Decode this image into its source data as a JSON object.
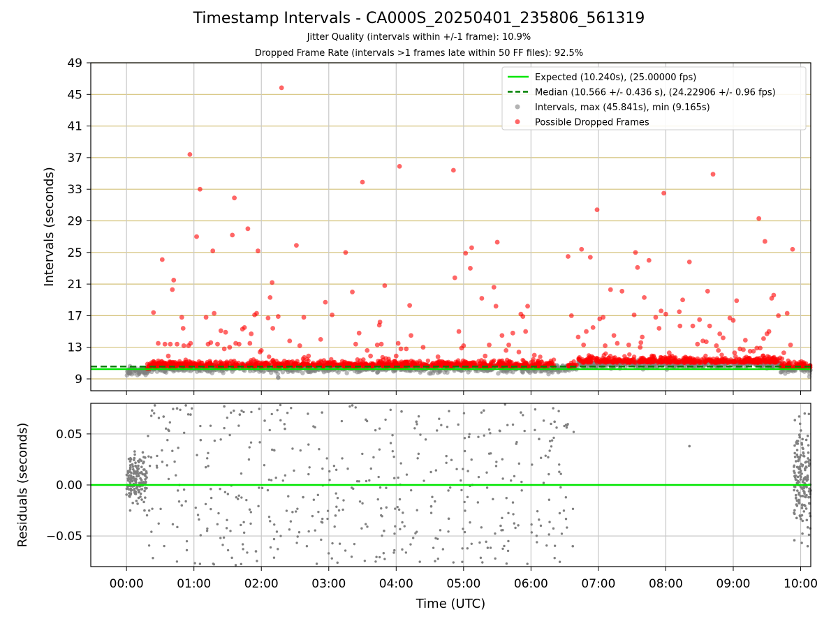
{
  "figure": {
    "title": "Timestamp Intervals - CA000S_20250401_235806_561319",
    "subtitle_jitter": "Jitter Quality (intervals within +/-1 frame): 10.9%",
    "subtitle_dropped": "Dropped Frame Rate (intervals >1 frames late within 50 FF files): 92.5%"
  },
  "colors": {
    "expected": "#00e600",
    "median": "#008000",
    "intervals": "#808080",
    "dropped": "#ff0000",
    "hgrid": "#d4c27a",
    "vgrid": "#c8c8c8"
  },
  "chart_data": [
    {
      "type": "scatter",
      "ylabel": "Intervals (seconds)",
      "ylim": [
        7.5,
        49
      ],
      "yticks": [
        9,
        13,
        17,
        21,
        25,
        29,
        33,
        37,
        41,
        45,
        49
      ],
      "xlim_hours": [
        -0.53,
        10.15
      ],
      "xticks": [
        "00:00",
        "01:00",
        "02:00",
        "03:00",
        "04:00",
        "05:00",
        "06:00",
        "07:00",
        "08:00",
        "09:00",
        "10:00"
      ],
      "grid": true,
      "legend_position": "upper right",
      "legend": [
        "Expected (10.240s), (25.00000 fps)",
        "Median (10.566 +/- 0.436 s), (24.22906 +/- 0.96 fps)",
        "Intervals, max (45.841s), min (9.165s)",
        "Possible Dropped Frames"
      ],
      "expected_interval": 10.24,
      "median_interval": 10.566,
      "max_interval": 45.841,
      "min_interval": 9.165,
      "dropped_outliers": [
        [
          0.4,
          17.4
        ],
        [
          0.47,
          13.5
        ],
        [
          0.53,
          24.1
        ],
        [
          0.57,
          13.4
        ],
        [
          0.62,
          11.9
        ],
        [
          0.65,
          13.4
        ],
        [
          0.68,
          20.3
        ],
        [
          0.7,
          21.5
        ],
        [
          0.75,
          13.4
        ],
        [
          0.82,
          16.8
        ],
        [
          0.84,
          15.4
        ],
        [
          0.85,
          13.2
        ],
        [
          0.92,
          13.2
        ],
        [
          0.94,
          37.4
        ],
        [
          0.95,
          13.5
        ],
        [
          1.04,
          27.0
        ],
        [
          1.09,
          33.0
        ],
        [
          1.18,
          16.8
        ],
        [
          1.21,
          13.4
        ],
        [
          1.25,
          13.6
        ],
        [
          1.28,
          25.2
        ],
        [
          1.3,
          17.3
        ],
        [
          1.35,
          13.4
        ],
        [
          1.4,
          15.1
        ],
        [
          1.45,
          12.8
        ],
        [
          1.47,
          14.9
        ],
        [
          1.53,
          13.0
        ],
        [
          1.57,
          27.2
        ],
        [
          1.6,
          31.9
        ],
        [
          1.62,
          13.5
        ],
        [
          1.67,
          13.4
        ],
        [
          1.72,
          15.3
        ],
        [
          1.75,
          15.5
        ],
        [
          1.8,
          28.0
        ],
        [
          1.83,
          13.5
        ],
        [
          1.85,
          14.7
        ],
        [
          1.9,
          17.1
        ],
        [
          1.93,
          17.3
        ],
        [
          1.95,
          25.2
        ],
        [
          1.98,
          12.4
        ],
        [
          2.0,
          12.6
        ],
        [
          2.1,
          16.7
        ],
        [
          2.13,
          19.3
        ],
        [
          2.16,
          21.2
        ],
        [
          2.17,
          15.4
        ],
        [
          2.25,
          16.9
        ],
        [
          2.3,
          45.84
        ],
        [
          2.42,
          13.8
        ],
        [
          2.52,
          25.9
        ],
        [
          2.57,
          13.2
        ],
        [
          2.63,
          16.8
        ],
        [
          2.7,
          11.9
        ],
        [
          2.88,
          14.0
        ],
        [
          2.95,
          18.7
        ],
        [
          3.05,
          17.1
        ],
        [
          3.25,
          25.0
        ],
        [
          3.35,
          20.0
        ],
        [
          3.4,
          13.4
        ],
        [
          3.45,
          14.8
        ],
        [
          3.5,
          33.9
        ],
        [
          3.57,
          12.6
        ],
        [
          3.62,
          11.9
        ],
        [
          3.72,
          13.3
        ],
        [
          3.75,
          15.8
        ],
        [
          3.76,
          16.2
        ],
        [
          3.78,
          13.4
        ],
        [
          3.83,
          20.8
        ],
        [
          4.0,
          11.9
        ],
        [
          4.03,
          13.5
        ],
        [
          4.05,
          35.9
        ],
        [
          4.07,
          12.8
        ],
        [
          4.15,
          12.8
        ],
        [
          4.2,
          18.3
        ],
        [
          4.22,
          14.5
        ],
        [
          4.4,
          13.0
        ],
        [
          4.62,
          11.8
        ],
        [
          4.85,
          35.4
        ],
        [
          4.87,
          21.8
        ],
        [
          4.93,
          15.0
        ],
        [
          4.97,
          12.9
        ],
        [
          5.0,
          13.2
        ],
        [
          5.03,
          24.9
        ],
        [
          5.1,
          23.0
        ],
        [
          5.12,
          25.6
        ],
        [
          5.27,
          19.2
        ],
        [
          5.32,
          11.9
        ],
        [
          5.38,
          13.3
        ],
        [
          5.45,
          20.6
        ],
        [
          5.48,
          18.2
        ],
        [
          5.5,
          26.3
        ],
        [
          5.57,
          14.5
        ],
        [
          5.63,
          12.6
        ],
        [
          5.67,
          13.3
        ],
        [
          5.73,
          14.8
        ],
        [
          5.82,
          12.4
        ],
        [
          5.85,
          17.2
        ],
        [
          5.88,
          16.9
        ],
        [
          5.92,
          15.0
        ],
        [
          5.95,
          18.2
        ],
        [
          6.05,
          12.0
        ],
        [
          6.55,
          24.5
        ],
        [
          6.6,
          17.0
        ],
        [
          6.7,
          14.3
        ],
        [
          6.75,
          25.4
        ],
        [
          6.78,
          13.3
        ],
        [
          6.82,
          15.0
        ],
        [
          6.88,
          24.4
        ],
        [
          6.92,
          15.5
        ],
        [
          6.98,
          30.4
        ],
        [
          7.02,
          16.6
        ],
        [
          7.07,
          16.8
        ],
        [
          7.1,
          13.2
        ],
        [
          7.18,
          20.3
        ],
        [
          7.23,
          14.5
        ],
        [
          7.28,
          13.5
        ],
        [
          7.35,
          20.1
        ],
        [
          7.45,
          13.3
        ],
        [
          7.53,
          17.1
        ],
        [
          7.55,
          25.0
        ],
        [
          7.58,
          23.1
        ],
        [
          7.62,
          13.0
        ],
        [
          7.63,
          13.6
        ],
        [
          7.65,
          14.3
        ],
        [
          7.68,
          19.3
        ],
        [
          7.75,
          24.0
        ],
        [
          7.85,
          16.8
        ],
        [
          7.9,
          15.4
        ],
        [
          7.93,
          17.6
        ],
        [
          7.97,
          32.5
        ],
        [
          8.0,
          17.2
        ],
        [
          8.05,
          12.3
        ],
        [
          8.2,
          17.5
        ],
        [
          8.21,
          15.7
        ],
        [
          8.25,
          19.0
        ],
        [
          8.35,
          23.8
        ],
        [
          8.4,
          15.7
        ],
        [
          8.47,
          13.4
        ],
        [
          8.5,
          16.5
        ],
        [
          8.55,
          13.8
        ],
        [
          8.6,
          13.7
        ],
        [
          8.62,
          20.1
        ],
        [
          8.65,
          15.7
        ],
        [
          8.7,
          34.9
        ],
        [
          8.75,
          13.2
        ],
        [
          8.78,
          12.6
        ],
        [
          8.8,
          14.7
        ],
        [
          8.85,
          14.2
        ],
        [
          8.95,
          16.7
        ],
        [
          9.0,
          16.4
        ],
        [
          9.02,
          12.3
        ],
        [
          9.05,
          18.9
        ],
        [
          9.1,
          12.8
        ],
        [
          9.15,
          12.7
        ],
        [
          9.18,
          13.9
        ],
        [
          9.25,
          12.5
        ],
        [
          9.3,
          12.5
        ],
        [
          9.35,
          12.9
        ],
        [
          9.38,
          29.3
        ],
        [
          9.4,
          12.9
        ],
        [
          9.45,
          14.1
        ],
        [
          9.47,
          26.4
        ],
        [
          9.5,
          14.7
        ],
        [
          9.53,
          15.0
        ],
        [
          9.57,
          19.2
        ],
        [
          9.6,
          19.6
        ],
        [
          9.67,
          17.0
        ],
        [
          9.75,
          12.3
        ],
        [
          9.8,
          17.3
        ],
        [
          9.85,
          13.3
        ],
        [
          9.88,
          25.4
        ]
      ]
    },
    {
      "type": "scatter",
      "ylabel": "Residuals (seconds)",
      "xlabel": "Time (UTC)",
      "ylim": [
        -0.08,
        0.08
      ],
      "yticks": [
        0.05,
        0.0,
        -0.05
      ],
      "ytick_labels": [
        "0.05",
        "0.00",
        "−0.05"
      ],
      "xlim_hours": [
        -0.53,
        10.15
      ],
      "xticks": [
        "00:00",
        "01:00",
        "02:00",
        "03:00",
        "04:00",
        "05:00",
        "06:00",
        "07:00",
        "08:00",
        "09:00",
        "10:00"
      ],
      "grid": true,
      "zero_line": 0.0,
      "clusters": [
        {
          "x_range": [
            0.0,
            0.3
          ],
          "y_range": [
            -0.025,
            0.035
          ]
        },
        {
          "x_range": [
            9.9,
            10.15
          ],
          "y_range": [
            -0.06,
            0.07
          ]
        }
      ],
      "scattered_points": [
        [
          0.38,
          0.073
        ],
        [
          0.42,
          0.078
        ],
        [
          0.55,
          0.067
        ],
        [
          0.62,
          0.054
        ],
        [
          0.75,
          0.075
        ],
        [
          0.82,
          -0.02
        ],
        [
          0.88,
          0.078
        ],
        [
          0.95,
          0.069
        ],
        [
          1.1,
          0.044
        ],
        [
          1.25,
          -0.004
        ],
        [
          1.45,
          0.077
        ],
        [
          1.68,
          0.069
        ],
        [
          1.92,
          -0.065
        ],
        [
          2.05,
          0.063
        ],
        [
          2.35,
          0.055
        ],
        [
          2.62,
          -0.012
        ],
        [
          2.9,
          0.071
        ],
        [
          3.1,
          -0.03
        ],
        [
          3.35,
          0.078
        ],
        [
          3.55,
          0.064
        ],
        [
          3.82,
          -0.045
        ],
        [
          4.08,
          0.072
        ],
        [
          4.3,
          0.062
        ],
        [
          4.52,
          -0.021
        ],
        [
          4.78,
          -0.033
        ],
        [
          5.08,
          0.047
        ],
        [
          5.3,
          0.073
        ],
        [
          5.55,
          -0.04
        ],
        [
          5.85,
          0.071
        ],
        [
          6.12,
          0.045
        ],
        [
          6.35,
          0.062
        ],
        [
          6.62,
          -0.06
        ],
        [
          8.35,
          0.038
        ]
      ]
    }
  ]
}
